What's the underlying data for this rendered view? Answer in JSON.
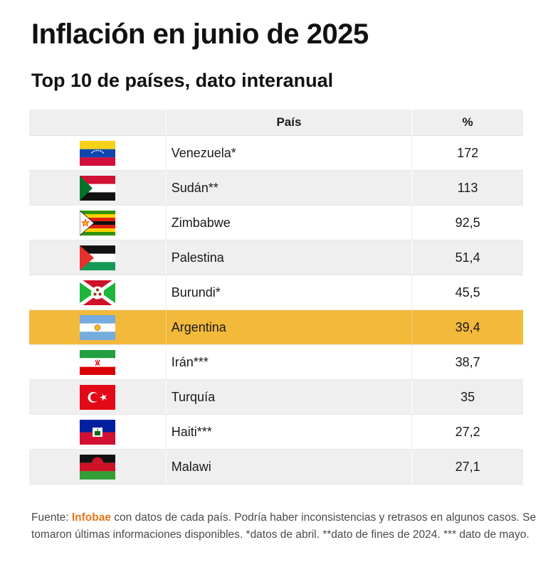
{
  "title": "Inflación en junio de 2025",
  "subtitle": "Top 10 de países, dato interanual",
  "table": {
    "headers": {
      "flag": "",
      "country": "País",
      "value": "%"
    },
    "highlight_color": "#f2b93b",
    "rows": [
      {
        "flag_icon": "venezuela-flag-icon",
        "country": "Venezuela*",
        "value": "172"
      },
      {
        "flag_icon": "sudan-flag-icon",
        "country": "Sudán**",
        "value": "113"
      },
      {
        "flag_icon": "zimbabwe-flag-icon",
        "country": "Zimbabwe",
        "value": "92,5"
      },
      {
        "flag_icon": "palestine-flag-icon",
        "country": "Palestina",
        "value": "51,4"
      },
      {
        "flag_icon": "burundi-flag-icon",
        "country": "Burundi*",
        "value": "45,5"
      },
      {
        "flag_icon": "argentina-flag-icon",
        "country": "Argentina",
        "value": "39,4",
        "highlighted": true
      },
      {
        "flag_icon": "iran-flag-icon",
        "country": "Irán***",
        "value": "38,7"
      },
      {
        "flag_icon": "turkey-flag-icon",
        "country": "Turquía",
        "value": "35"
      },
      {
        "flag_icon": "haiti-flag-icon",
        "country": "Haiti***",
        "value": "27,2"
      },
      {
        "flag_icon": "malawi-flag-icon",
        "country": "Malawi",
        "value": "27,1"
      }
    ]
  },
  "footer": {
    "prefix": "Fuente: ",
    "source": "Infobae",
    "source_color": "#e4761c",
    "text": " con datos de cada país. Podría haber inconsistencias y retrasos en algunos casos. Se tomaron últimas informaciones disponibles. *datos de abril. **dato de fines de 2024. *** dato de mayo."
  },
  "chart_data": {
    "type": "table",
    "title": "Inflación en junio de 2025",
    "subtitle": "Top 10 de países, dato interanual",
    "columns": [
      "País",
      "%"
    ],
    "categories": [
      "Venezuela*",
      "Sudán**",
      "Zimbabwe",
      "Palestina",
      "Burundi*",
      "Argentina",
      "Irán***",
      "Turquía",
      "Haiti***",
      "Malawi"
    ],
    "values": [
      172,
      113,
      92.5,
      51.4,
      45.5,
      39.4,
      38.7,
      35,
      27.2,
      27.1
    ],
    "highlighted_category": "Argentina"
  }
}
